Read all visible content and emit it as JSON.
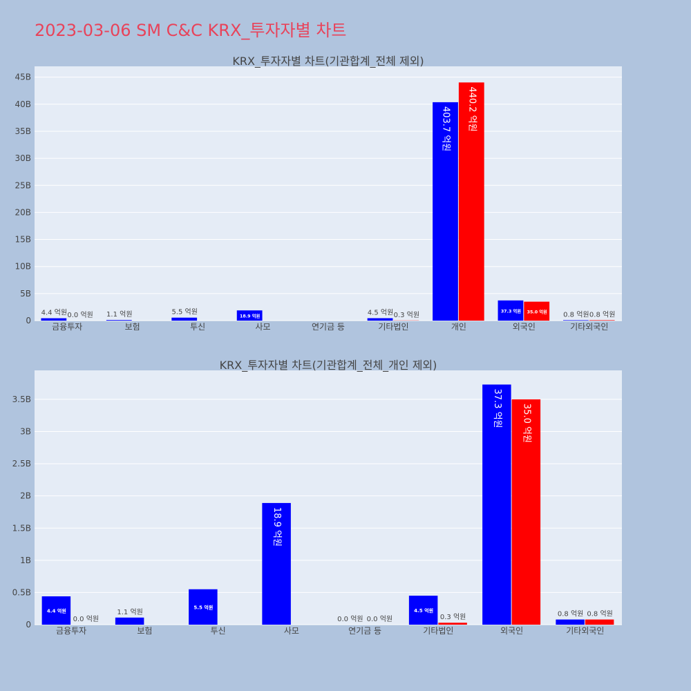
{
  "page": {
    "title": "2023-03-06 SM C&C KRX_투자자별 차트"
  },
  "colors": {
    "background": "#b0c4de",
    "plot_bg": "#e5ecf6",
    "title": "#e8435a",
    "buy": "#0000ff",
    "sell": "#ff0000"
  },
  "chart_data": [
    {
      "type": "bar",
      "title": "KRX_투자자별 차트(기관합계_전체 제외)",
      "categories": [
        "금융투자",
        "보험",
        "투신",
        "사모",
        "연기금 등",
        "기타법인",
        "개인",
        "외국인",
        "기타외국인"
      ],
      "ylim": [
        0,
        47
      ],
      "yticks": [
        "0",
        "5B",
        "10B",
        "15B",
        "20B",
        "25B",
        "30B",
        "35B",
        "40B",
        "45B"
      ],
      "ytick_values": [
        0,
        5,
        10,
        15,
        20,
        25,
        30,
        35,
        40,
        45
      ],
      "grid": true,
      "series": [
        {
          "color": "#0000ff",
          "values": [
            0.44,
            0.11,
            0.55,
            1.89,
            0.0,
            0.45,
            40.37,
            3.73,
            0.08
          ],
          "labels": [
            "4.4 억원",
            "1.1 억원",
            "5.5 억원",
            "18.9 억원",
            "",
            "4.5 억원",
            "403.7 억원",
            "37.3 억원",
            "0.8 억원"
          ]
        },
        {
          "color": "#ff0000",
          "values": [
            0.0,
            0.0,
            0.0,
            0.0,
            0.0,
            0.03,
            44.02,
            3.5,
            0.08
          ],
          "labels": [
            "0.0 억원",
            "",
            "",
            "",
            "",
            "0.3 억원",
            "440.2 억원",
            "35.0 억원",
            "0.8 억원"
          ]
        }
      ]
    },
    {
      "type": "bar",
      "title": "KRX_투자자별 차트(기관합계_전체_개인 제외)",
      "categories": [
        "금융투자",
        "보험",
        "투신",
        "사모",
        "연기금 등",
        "기타법인",
        "외국인",
        "기타외국인"
      ],
      "ylim": [
        0,
        3.95
      ],
      "yticks": [
        "0",
        "0.5B",
        "1B",
        "1.5B",
        "2B",
        "2.5B",
        "3B",
        "3.5B"
      ],
      "ytick_values": [
        0,
        0.5,
        1,
        1.5,
        2,
        2.5,
        3,
        3.5
      ],
      "grid": true,
      "series": [
        {
          "color": "#0000ff",
          "values": [
            0.44,
            0.11,
            0.55,
            1.89,
            0.0,
            0.45,
            3.73,
            0.08
          ],
          "labels": [
            "4.4 억원",
            "1.1 억원",
            "5.5 억원",
            "18.9 억원",
            "0.0 억원",
            "4.5 억원",
            "37.3 억원",
            "0.8 억원"
          ]
        },
        {
          "color": "#ff0000",
          "values": [
            0.0,
            0.0,
            0.0,
            0.0,
            0.0,
            0.03,
            3.5,
            0.08
          ],
          "labels": [
            "0.0 억원",
            "",
            "",
            "",
            "0.0 억원",
            "0.3 억원",
            "35.0 억원",
            "0.8 억원"
          ]
        }
      ]
    }
  ]
}
